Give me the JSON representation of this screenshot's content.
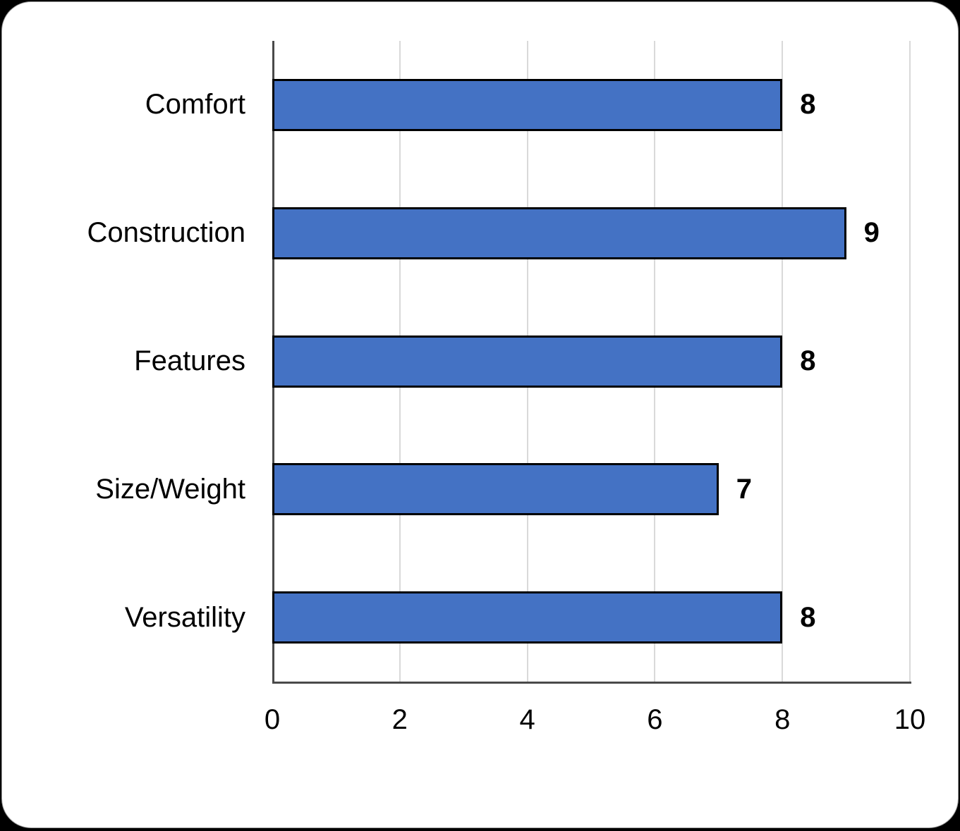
{
  "panel": {
    "background_color": "#FFFFFF",
    "border_color": "#9D9D9D",
    "page_background_color": "#000000"
  },
  "chart_data": {
    "type": "bar",
    "orientation": "horizontal",
    "title": "",
    "xlabel": "",
    "ylabel": "",
    "categories": [
      "Comfort",
      "Construction",
      "Features",
      "Size/Weight",
      "Versatility"
    ],
    "values": [
      8,
      9,
      8,
      7,
      8
    ],
    "data_labels": [
      "8",
      "9",
      "8",
      "7",
      "8"
    ],
    "xlim": [
      0,
      10
    ],
    "x_ticks": [
      0,
      2,
      4,
      6,
      8,
      10
    ],
    "tick_labels": [
      "0",
      "2",
      "4",
      "6",
      "8",
      "10"
    ],
    "grid": "vertical major gridlines on",
    "legend": "none",
    "bar_color": "#4472C4",
    "bar_border_color": "#000000",
    "gridline_color": "#D9D9D9",
    "axis_line_color": "#4A4A4A",
    "text_color": "#000000"
  }
}
